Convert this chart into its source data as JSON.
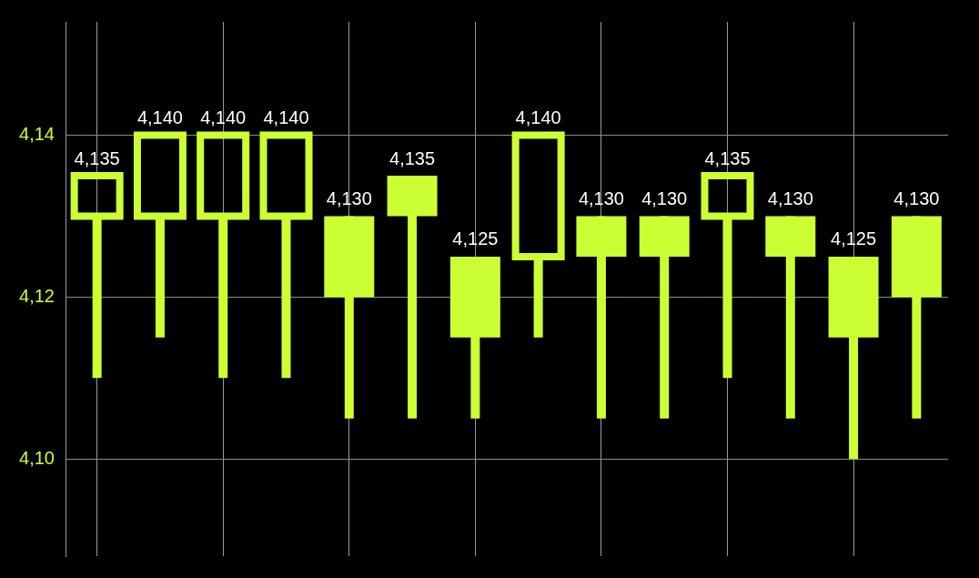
{
  "chart_data": {
    "type": "candlestick",
    "color": "#ccff33",
    "categories": [
      null,
      null,
      null,
      null,
      null,
      null,
      null,
      null,
      null,
      null,
      null,
      null,
      null,
      null
    ],
    "ohlc": [
      [
        4.13,
        4.135,
        4.11,
        4.135
      ],
      [
        4.13,
        4.14,
        4.115,
        4.14
      ],
      [
        4.13,
        4.14,
        4.11,
        4.14
      ],
      [
        4.13,
        4.14,
        4.11,
        4.14
      ],
      [
        4.13,
        4.13,
        4.105,
        4.12
      ],
      [
        4.135,
        4.135,
        4.105,
        4.13
      ],
      [
        4.125,
        4.125,
        4.105,
        4.115
      ],
      [
        4.125,
        4.14,
        4.115,
        4.14
      ],
      [
        4.13,
        4.13,
        4.105,
        4.125
      ],
      [
        4.13,
        4.13,
        4.105,
        4.125
      ],
      [
        4.13,
        4.135,
        4.11,
        4.135
      ],
      [
        4.13,
        4.13,
        4.105,
        4.125
      ],
      [
        4.125,
        4.125,
        4.1,
        4.115
      ],
      [
        4.13,
        4.13,
        4.105,
        4.12
      ]
    ],
    "value_labels": [
      "4,135",
      "4,140",
      "4,140",
      "4,140",
      "4,130",
      "4,135",
      "4,125",
      "4,140",
      "4,130",
      "4,130",
      "4,135",
      "4,130",
      "4,125",
      "4,130"
    ],
    "ylim": [
      4.088,
      4.154
    ],
    "yticks": [
      {
        "value": 4.1,
        "label": "4,10"
      },
      {
        "value": 4.12,
        "label": "4,12"
      },
      {
        "value": 4.14,
        "label": "4,14"
      }
    ],
    "grid": true
  }
}
